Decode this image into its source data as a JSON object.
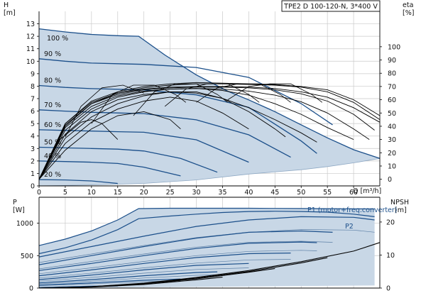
{
  "chart_data": [
    {
      "id": "head_efficiency",
      "type": "line",
      "title": "TPE2 D 100-120-N, 3*400 V",
      "x_unit_label": "Q [m³/h]",
      "left_axis": {
        "name": "H",
        "unit": "[m]",
        "ticks": [
          0,
          1,
          2,
          3,
          4,
          5,
          6,
          7,
          8,
          9,
          10,
          11,
          12,
          13
        ],
        "ylim": [
          0,
          14
        ]
      },
      "right_axis": {
        "name": "eta",
        "unit": "[%]",
        "ticks": [
          0,
          10,
          20,
          30,
          40,
          50,
          60,
          70,
          80,
          90,
          100
        ],
        "ylim": [
          -5,
          126.7
        ]
      },
      "x_ticks": [
        0,
        5,
        10,
        15,
        20,
        25,
        30,
        35,
        40,
        45,
        50,
        55,
        60
      ],
      "xlim": [
        0,
        65
      ],
      "grid": true,
      "shaded_area_color": "#c8d7e6",
      "curve_color": "#1b4f8a",
      "series": [
        {
          "name": "100 %",
          "x": [
            0,
            5,
            10,
            15,
            19,
            24,
            30,
            36,
            40,
            45,
            50,
            55,
            60,
            65
          ],
          "y": [
            12.6,
            12.35,
            12.15,
            12.05,
            12.0,
            10.5,
            8.9,
            7.6,
            6.9,
            5.95,
            4.9,
            3.85,
            2.9,
            2.2
          ]
        },
        {
          "name": "90 %",
          "x": [
            0,
            5,
            10,
            15,
            20,
            30,
            40,
            50,
            56
          ],
          "y": [
            10.2,
            10.0,
            9.85,
            9.8,
            9.75,
            9.5,
            8.7,
            6.6,
            4.9
          ]
        },
        {
          "name": "80 %",
          "x": [
            0,
            5,
            10,
            15,
            20,
            30,
            40,
            50,
            53
          ],
          "y": [
            8.05,
            7.9,
            7.8,
            7.75,
            7.7,
            7.3,
            6.3,
            3.6,
            2.6
          ]
        },
        {
          "name": "70 %",
          "x": [
            0,
            5,
            10,
            15,
            20,
            30,
            40,
            48
          ],
          "y": [
            6.1,
            6.0,
            5.9,
            5.85,
            5.8,
            5.3,
            4.1,
            2.3
          ]
        },
        {
          "name": "60 %",
          "x": [
            0,
            5,
            10,
            15,
            20,
            30,
            40
          ],
          "y": [
            4.5,
            4.45,
            4.4,
            4.35,
            4.3,
            3.7,
            1.9
          ]
        },
        {
          "name": "50 %",
          "x": [
            0,
            5,
            10,
            15,
            20,
            27,
            34
          ],
          "y": [
            3.1,
            3.05,
            3.0,
            2.95,
            2.8,
            2.2,
            1.1
          ]
        },
        {
          "name": "40 %",
          "x": [
            0,
            5,
            10,
            15,
            20,
            27
          ],
          "y": [
            2.0,
            1.95,
            1.9,
            1.8,
            1.5,
            0.8
          ]
        },
        {
          "name": "20 %",
          "x": [
            0,
            5,
            10,
            15
          ],
          "y": [
            0.5,
            0.48,
            0.4,
            0.2
          ]
        }
      ],
      "operating_boundary_min": {
        "x": [
          0,
          10,
          20,
          30,
          40,
          50,
          55,
          60,
          65
        ],
        "y": [
          0.0,
          0.08,
          0.2,
          0.48,
          0.95,
          1.3,
          1.55,
          1.85,
          2.2
        ]
      },
      "efficiency_curves": [
        {
          "x": [
            0,
            5,
            10,
            15,
            20,
            25,
            30,
            35,
            40,
            45,
            50,
            55,
            60,
            65
          ],
          "eta": [
            0,
            42,
            58,
            65,
            68,
            69.5,
            70,
            70,
            69.5,
            68.5,
            66,
            62,
            54,
            43
          ]
        },
        {
          "x": [
            0,
            5,
            10,
            15,
            20,
            25,
            30,
            35,
            40,
            45,
            50,
            55,
            60,
            64
          ],
          "eta": [
            0,
            41,
            57,
            64,
            67.5,
            69,
            69.5,
            69.5,
            69,
            67.5,
            64.5,
            59,
            49,
            37
          ]
        },
        {
          "x": [
            0,
            5,
            10,
            15,
            20,
            25,
            30,
            35,
            40,
            45,
            50,
            55,
            60,
            63
          ],
          "eta": [
            0,
            39,
            55,
            63,
            66.5,
            68,
            68.5,
            68,
            66.5,
            63.5,
            58.5,
            50,
            38,
            30
          ]
        },
        {
          "x": [
            0,
            5,
            10,
            15,
            20,
            25,
            30,
            35,
            40,
            45,
            50,
            55,
            60
          ],
          "eta": [
            0,
            37,
            53,
            62,
            66,
            68,
            68.5,
            67,
            63.5,
            57,
            49,
            39,
            30
          ]
        },
        {
          "x": [
            0,
            5,
            10,
            15,
            20,
            25,
            30,
            35,
            40,
            45,
            50,
            53
          ],
          "eta": [
            0,
            34,
            51,
            60,
            64,
            66,
            65,
            61,
            54,
            45,
            35,
            28
          ]
        },
        {
          "x": [
            0,
            5,
            10,
            15,
            20,
            25,
            30,
            35,
            40,
            45,
            47
          ],
          "eta": [
            0,
            31,
            47,
            57,
            63,
            66,
            66,
            61,
            51,
            38,
            32
          ]
        },
        {
          "x": [
            0,
            5,
            10,
            15,
            20,
            25,
            30,
            35,
            40
          ],
          "eta": [
            0,
            27,
            43,
            53,
            59,
            62,
            59,
            50,
            38
          ]
        },
        {
          "x": [
            0,
            5,
            10,
            15,
            20,
            25,
            27
          ],
          "eta": [
            0,
            22,
            38,
            48,
            51,
            45,
            38
          ]
        },
        {
          "x": [
            0,
            4,
            8,
            10,
            12,
            15
          ],
          "eta": [
            0,
            30,
            43,
            45,
            42,
            30
          ]
        },
        {
          "x": [
            0,
            5,
            10,
            15,
            20,
            25,
            30,
            35,
            40,
            45,
            50,
            55,
            60,
            65
          ],
          "eta": [
            0,
            40,
            57,
            65,
            69,
            71,
            72,
            72,
            71.5,
            71,
            69.5,
            66,
            58,
            45
          ]
        },
        {
          "x": [
            0,
            5,
            10,
            15,
            20,
            25,
            30,
            35,
            40,
            45,
            50,
            55,
            60,
            65
          ],
          "eta": [
            0,
            42,
            59,
            66,
            70,
            72,
            73,
            72.5,
            72,
            71.5,
            70,
            67.5,
            60,
            48
          ]
        }
      ],
      "efficiency_tip_curves": [
        {
          "x": [
            5,
            8,
            12,
            16,
            20
          ],
          "eta": [
            32,
            55,
            69,
            71,
            65
          ]
        },
        {
          "x": [
            10,
            14,
            18,
            22,
            26,
            28
          ],
          "eta": [
            42,
            64,
            71,
            71,
            64,
            58
          ]
        },
        {
          "x": [
            18,
            22,
            26,
            30,
            34,
            36
          ],
          "eta": [
            48,
            66,
            72,
            72,
            64,
            58
          ]
        },
        {
          "x": [
            24,
            28,
            32,
            36,
            40,
            42
          ],
          "eta": [
            55,
            68,
            72,
            72,
            64,
            58
          ]
        },
        {
          "x": [
            30,
            34,
            38,
            42,
            46,
            48
          ],
          "eta": [
            58,
            69,
            72,
            72,
            64,
            58
          ]
        },
        {
          "x": [
            36,
            40,
            44,
            48,
            52,
            54
          ],
          "eta": [
            60,
            70,
            72,
            72,
            64,
            58
          ]
        }
      ]
    },
    {
      "id": "power_npsh",
      "type": "line",
      "x_unit_label": "Q [m³/h]",
      "left_axis": {
        "name": "P",
        "unit": "[W]",
        "ticks": [
          0,
          500,
          1000
        ],
        "ylim": [
          0,
          1400
        ]
      },
      "right_axis": {
        "name": "NPSH",
        "unit": "[m]",
        "ticks": [
          0,
          10,
          20
        ],
        "ylim": [
          0,
          27.5
        ]
      },
      "xlim": [
        0,
        65
      ],
      "grid": true,
      "shaded_area_color": "#c8d7e6",
      "curve_color": "#1b4f8a",
      "annotations": [
        "P1 (motor+freq.converter)",
        "P2"
      ],
      "P1_max": {
        "x": [
          0,
          5,
          10,
          15,
          19,
          25,
          30,
          35,
          40,
          45,
          50,
          55,
          60,
          64
        ],
        "y": [
          655,
          755,
          880,
          1050,
          1225,
          1230,
          1230,
          1230,
          1230,
          1228,
          1226,
          1224,
          1222,
          1220
        ]
      },
      "P2_max": {
        "x": [
          0,
          5,
          10,
          15,
          19,
          25,
          30,
          35,
          40,
          45,
          50,
          55,
          60,
          64
        ],
        "y": [
          530,
          620,
          740,
          900,
          1070,
          1110,
          1140,
          1165,
          1180,
          1185,
          1180,
          1170,
          1140,
          1100
        ]
      },
      "power_curves": [
        {
          "x": [
            0,
            10,
            20,
            30,
            40,
            50,
            60,
            64
          ],
          "y": [
            480,
            640,
            800,
            950,
            1050,
            1100,
            1090,
            1050
          ]
        },
        {
          "x": [
            0,
            10,
            20,
            30,
            40,
            50,
            56
          ],
          "y": [
            360,
            500,
            640,
            770,
            860,
            880,
            860
          ]
        },
        {
          "x": [
            0,
            10,
            20,
            30,
            40,
            50,
            53
          ],
          "y": [
            270,
            380,
            500,
            610,
            690,
            710,
            700
          ]
        },
        {
          "x": [
            0,
            10,
            20,
            30,
            40,
            48
          ],
          "y": [
            190,
            280,
            380,
            470,
            530,
            540
          ]
        },
        {
          "x": [
            0,
            10,
            20,
            30,
            40
          ],
          "y": [
            130,
            200,
            280,
            350,
            380
          ]
        },
        {
          "x": [
            0,
            10,
            20,
            30,
            34
          ],
          "y": [
            80,
            130,
            190,
            240,
            250
          ]
        },
        {
          "x": [
            0,
            10,
            20,
            27
          ],
          "y": [
            45,
            80,
            120,
            140
          ]
        },
        {
          "x": [
            0,
            5,
            10,
            15
          ],
          "y": [
            10,
            20,
            30,
            35
          ]
        }
      ],
      "npsh_curves": [
        {
          "x": [
            0,
            10,
            20,
            30,
            40,
            50,
            60,
            65
          ],
          "npsh": [
            0,
            0.4,
            1.5,
            3.2,
            5.3,
            8.0,
            11.2,
            13.8
          ]
        },
        {
          "x": [
            0,
            10,
            20,
            30,
            40,
            50,
            55
          ],
          "npsh": [
            0,
            0.4,
            1.4,
            3.0,
            5.0,
            7.6,
            9.2
          ]
        },
        {
          "x": [
            0,
            10,
            20,
            30,
            40,
            45
          ],
          "npsh": [
            0,
            0.35,
            1.3,
            2.8,
            4.8,
            5.9
          ]
        },
        {
          "x": [
            0,
            10,
            20,
            30,
            35
          ],
          "npsh": [
            0,
            0.3,
            1.1,
            2.5,
            3.3
          ]
        }
      ]
    }
  ]
}
